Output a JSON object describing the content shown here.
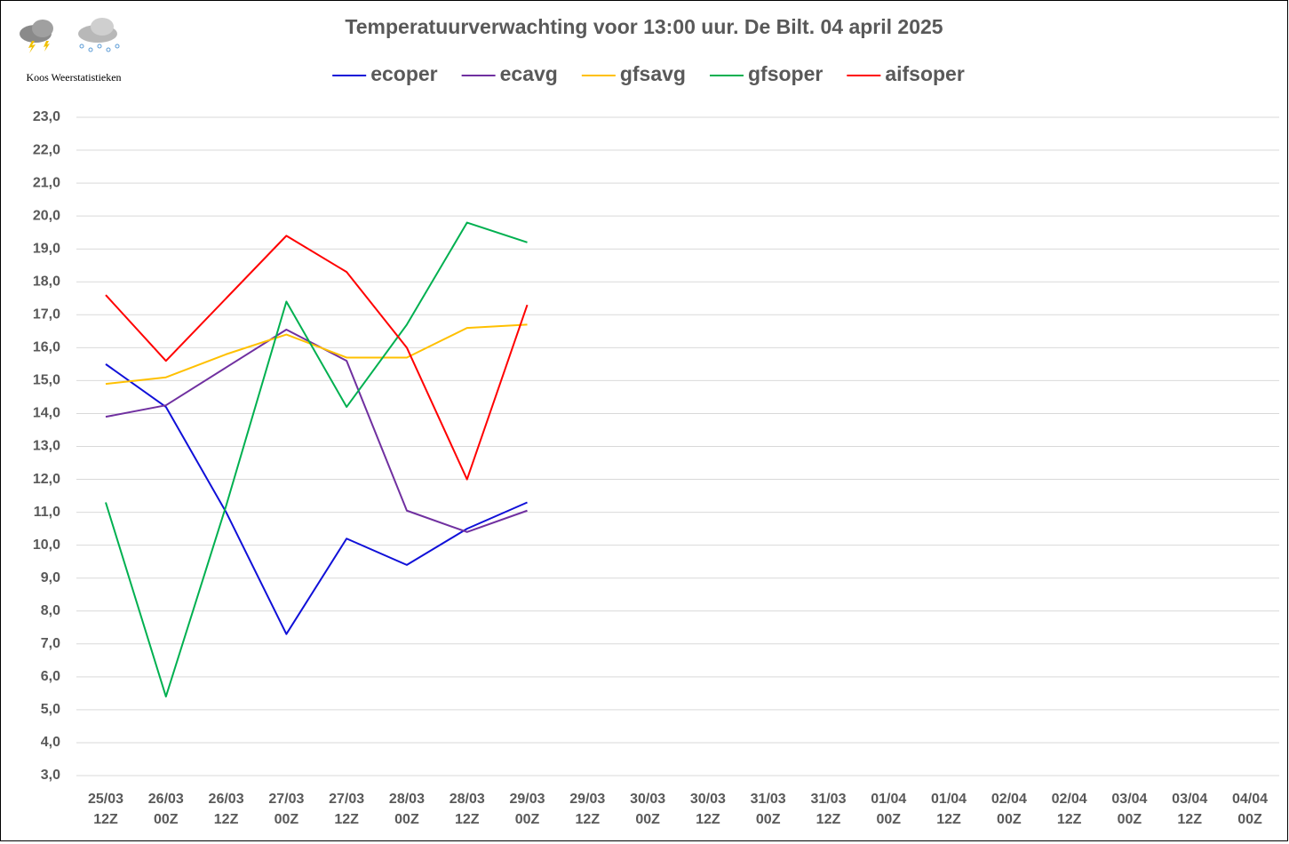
{
  "chart_data": {
    "type": "line",
    "title": "Temperatuurverwachting voor 13:00 uur. De Bilt. 04 april 2025",
    "brand": "Koos Weerstatistieken",
    "categories": [
      [
        "25/03",
        "12Z"
      ],
      [
        "26/03",
        "00Z"
      ],
      [
        "26/03",
        "12Z"
      ],
      [
        "27/03",
        "00Z"
      ],
      [
        "27/03",
        "12Z"
      ],
      [
        "28/03",
        "00Z"
      ],
      [
        "28/03",
        "12Z"
      ],
      [
        "29/03",
        "00Z"
      ],
      [
        "29/03",
        "12Z"
      ],
      [
        "30/03",
        "00Z"
      ],
      [
        "30/03",
        "12Z"
      ],
      [
        "31/03",
        "00Z"
      ],
      [
        "31/03",
        "12Z"
      ],
      [
        "01/04",
        "00Z"
      ],
      [
        "01/04",
        "12Z"
      ],
      [
        "02/04",
        "00Z"
      ],
      [
        "02/04",
        "12Z"
      ],
      [
        "03/04",
        "00Z"
      ],
      [
        "03/04",
        "12Z"
      ],
      [
        "04/04",
        "00Z"
      ]
    ],
    "series": [
      {
        "name": "ecoper",
        "color": "#1010d8",
        "values": [
          15.5,
          14.2,
          11.0,
          7.3,
          10.2,
          9.4,
          10.5,
          11.3,
          null,
          null,
          null,
          null,
          null,
          null,
          null,
          null,
          null,
          null,
          null,
          null
        ]
      },
      {
        "name": "ecavg",
        "color": "#7030a0",
        "values": [
          13.9,
          14.25,
          15.4,
          16.55,
          15.6,
          11.05,
          10.4,
          11.05,
          null,
          null,
          null,
          null,
          null,
          null,
          null,
          null,
          null,
          null,
          null,
          null
        ]
      },
      {
        "name": "gfsavg",
        "color": "#ffc000",
        "values": [
          14.9,
          15.1,
          15.8,
          16.4,
          15.7,
          15.7,
          16.6,
          16.7,
          null,
          null,
          null,
          null,
          null,
          null,
          null,
          null,
          null,
          null,
          null,
          null
        ]
      },
      {
        "name": "gfsoper",
        "color": "#00b050",
        "values": [
          11.3,
          5.4,
          11.2,
          17.4,
          14.2,
          16.7,
          19.8,
          19.2,
          null,
          null,
          null,
          null,
          null,
          null,
          null,
          null,
          null,
          null,
          null,
          null
        ]
      },
      {
        "name": "aifsoper",
        "color": "#ff0000",
        "values": [
          17.6,
          15.6,
          17.5,
          19.4,
          18.3,
          16.0,
          12.0,
          17.3,
          null,
          null,
          null,
          null,
          null,
          null,
          null,
          null,
          null,
          null,
          null,
          null
        ]
      }
    ],
    "ylim": [
      3,
      23
    ],
    "yticks": [
      {
        "value": 3,
        "label": "3,0"
      },
      {
        "value": 4,
        "label": "4,0"
      },
      {
        "value": 5,
        "label": "5,0"
      },
      {
        "value": 6,
        "label": "6,0"
      },
      {
        "value": 7,
        "label": "7,0"
      },
      {
        "value": 8,
        "label": "8,0"
      },
      {
        "value": 9,
        "label": "9,0"
      },
      {
        "value": 10,
        "label": "10,0"
      },
      {
        "value": 11,
        "label": "11,0"
      },
      {
        "value": 12,
        "label": "12,0"
      },
      {
        "value": 13,
        "label": "13,0"
      },
      {
        "value": 14,
        "label": "14,0"
      },
      {
        "value": 15,
        "label": "15,0"
      },
      {
        "value": 16,
        "label": "16,0"
      },
      {
        "value": 17,
        "label": "17,0"
      },
      {
        "value": 18,
        "label": "18,0"
      },
      {
        "value": 19,
        "label": "19,0"
      },
      {
        "value": 20,
        "label": "20,0"
      },
      {
        "value": 21,
        "label": "21,0"
      },
      {
        "value": 22,
        "label": "22,0"
      },
      {
        "value": 23,
        "label": "23,0"
      }
    ],
    "grid": true,
    "legend": "top"
  }
}
